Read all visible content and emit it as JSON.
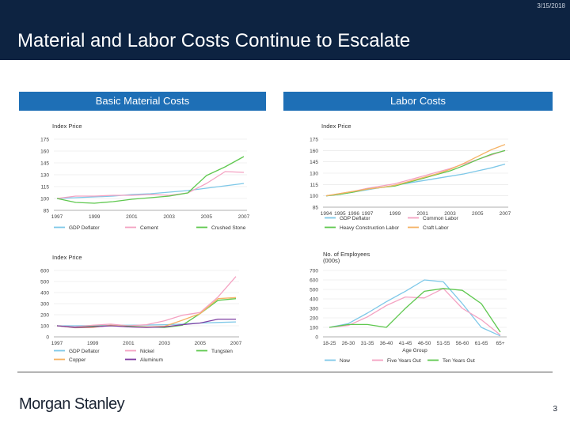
{
  "header": {
    "date": "3/15/2018",
    "title": "Material and Labor Costs Continue to Escalate"
  },
  "sections": {
    "left": "Basic Material Costs",
    "right": "Labor Costs"
  },
  "footer": {
    "brand": "Morgan Stanley",
    "page": "3"
  },
  "colors": {
    "header_bg": "#0d2341",
    "section_bar": "#1e6fb6"
  },
  "chart_data": [
    {
      "type": "line",
      "ylabel": "Index Price",
      "x": [
        1997,
        1998,
        1999,
        2000,
        2001,
        2002,
        2003,
        2004,
        2005,
        2006,
        2007
      ],
      "xticks": [
        1997,
        1999,
        2001,
        2003,
        2005,
        2007
      ],
      "xtick_labels": [
        "1997",
        "1999",
        "2001",
        "2003",
        "2005",
        "2007"
      ],
      "ylim": [
        85,
        175
      ],
      "yticks": [
        85,
        100,
        115,
        130,
        145,
        160,
        175
      ],
      "ytick_labels": [
        "85",
        "100",
        "115",
        "130",
        "145",
        "160",
        "175"
      ],
      "series": [
        {
          "name": "GDP Deflator",
          "color": "#7ec8e8",
          "values": [
            100,
            101,
            102,
            103,
            105,
            106,
            108,
            110,
            113,
            116,
            119
          ]
        },
        {
          "name": "Cement",
          "color": "#f4a2c2",
          "values": [
            100,
            103,
            103,
            104,
            104,
            105,
            104,
            107,
            119,
            134,
            133
          ]
        },
        {
          "name": "Crushed Stone",
          "color": "#5fc84f",
          "values": [
            100,
            95,
            94,
            96,
            99,
            101,
            103,
            107,
            129,
            140,
            153
          ]
        }
      ],
      "legend": "bottom"
    },
    {
      "type": "line",
      "ylabel": "Index Price",
      "x": [
        1994,
        1995,
        1996,
        1997,
        1998,
        1999,
        2000,
        2001,
        2002,
        2003,
        2004,
        2005,
        2006,
        2007
      ],
      "xticks": [
        1994,
        1995,
        1996,
        1997,
        1999,
        2001,
        2003,
        2005,
        2007
      ],
      "xtick_labels": [
        "1994",
        "1995",
        "1996",
        "1997",
        "1999",
        "2001",
        "2003",
        "2005",
        "2007"
      ],
      "ylim": [
        85,
        175
      ],
      "yticks": [
        85,
        100,
        115,
        130,
        145,
        160,
        175
      ],
      "ytick_labels": [
        "85",
        "100",
        "115",
        "130",
        "145",
        "160",
        "175"
      ],
      "series": [
        {
          "name": "GDP Deflator",
          "color": "#7ec8e8",
          "values": [
            100,
            102,
            105,
            108,
            111,
            114,
            117,
            120,
            123,
            126,
            129,
            133,
            137,
            142
          ]
        },
        {
          "name": "Common Labor",
          "color": "#f4a2c2",
          "values": [
            100,
            103,
            106,
            110,
            113,
            116,
            121,
            126,
            131,
            136,
            142,
            148,
            154,
            160
          ]
        },
        {
          "name": "Heavy Construction Labor",
          "color": "#5fc84f",
          "values": [
            100,
            102,
            105,
            109,
            111,
            113,
            118,
            123,
            128,
            133,
            140,
            148,
            155,
            160
          ]
        },
        {
          "name": "Craft Labor",
          "color": "#f5b264",
          "values": [
            100,
            103,
            106,
            109,
            111,
            114,
            119,
            124,
            129,
            135,
            143,
            152,
            161,
            168
          ]
        }
      ],
      "legend": "bottom"
    },
    {
      "type": "line",
      "ylabel": "Index Price",
      "x": [
        1997,
        1998,
        1999,
        2000,
        2001,
        2002,
        2003,
        2004,
        2005,
        2006,
        2007
      ],
      "xticks": [
        1997,
        1999,
        2001,
        2003,
        2005,
        2007
      ],
      "xtick_labels": [
        "1997",
        "1999",
        "2001",
        "2003",
        "2005",
        "2007"
      ],
      "ylim": [
        0,
        600
      ],
      "yticks": [
        0,
        100,
        200,
        300,
        400,
        500,
        600
      ],
      "ytick_labels": [
        "0",
        "100",
        "200",
        "300",
        "400",
        "500",
        "600"
      ],
      "series": [
        {
          "name": "GDP Deflator",
          "color": "#7ec8e8",
          "values": [
            100,
            100,
            102,
            104,
            105,
            107,
            110,
            115,
            125,
            130,
            135
          ]
        },
        {
          "name": "Nickel",
          "color": "#f4a2c2",
          "values": [
            100,
            90,
            105,
            115,
            100,
            110,
            145,
            195,
            220,
            360,
            545
          ]
        },
        {
          "name": "Tungsten",
          "color": "#5fc84f",
          "values": [
            100,
            85,
            95,
            100,
            95,
            90,
            85,
            105,
            210,
            330,
            345
          ]
        },
        {
          "name": "Copper",
          "color": "#f5b264",
          "values": [
            100,
            82,
            85,
            105,
            90,
            88,
            95,
            150,
            210,
            345,
            355
          ]
        },
        {
          "name": "Aluminum",
          "color": "#7f3fa2",
          "values": [
            100,
            85,
            90,
            100,
            90,
            85,
            90,
            110,
            125,
            160,
            160
          ]
        }
      ],
      "legend": "bottom"
    },
    {
      "type": "line",
      "ylabel": "No. of Employees (000s)",
      "xlabel": "Age Group",
      "categories": [
        "18-25",
        "26-30",
        "31-35",
        "36-40",
        "41-45",
        "46-50",
        "51-55",
        "56-60",
        "61-65",
        "65+"
      ],
      "ylim": [
        0,
        700
      ],
      "yticks": [
        0,
        100,
        200,
        300,
        400,
        500,
        600,
        700
      ],
      "ytick_labels": [
        "0",
        "100",
        "200",
        "300",
        "400",
        "500",
        "600",
        "700"
      ],
      "series": [
        {
          "name": "Now",
          "color": "#7ec8e8",
          "values": [
            100,
            140,
            250,
            370,
            480,
            600,
            580,
            350,
            100,
            10
          ]
        },
        {
          "name": "Five Years Out",
          "color": "#f4a2c2",
          "values": [
            100,
            120,
            210,
            330,
            420,
            410,
            510,
            300,
            180,
            20
          ]
        },
        {
          "name": "Ten Years Out",
          "color": "#5fc84f",
          "values": [
            100,
            130,
            130,
            100,
            300,
            480,
            510,
            490,
            350,
            50
          ]
        }
      ],
      "legend": "bottom"
    }
  ]
}
